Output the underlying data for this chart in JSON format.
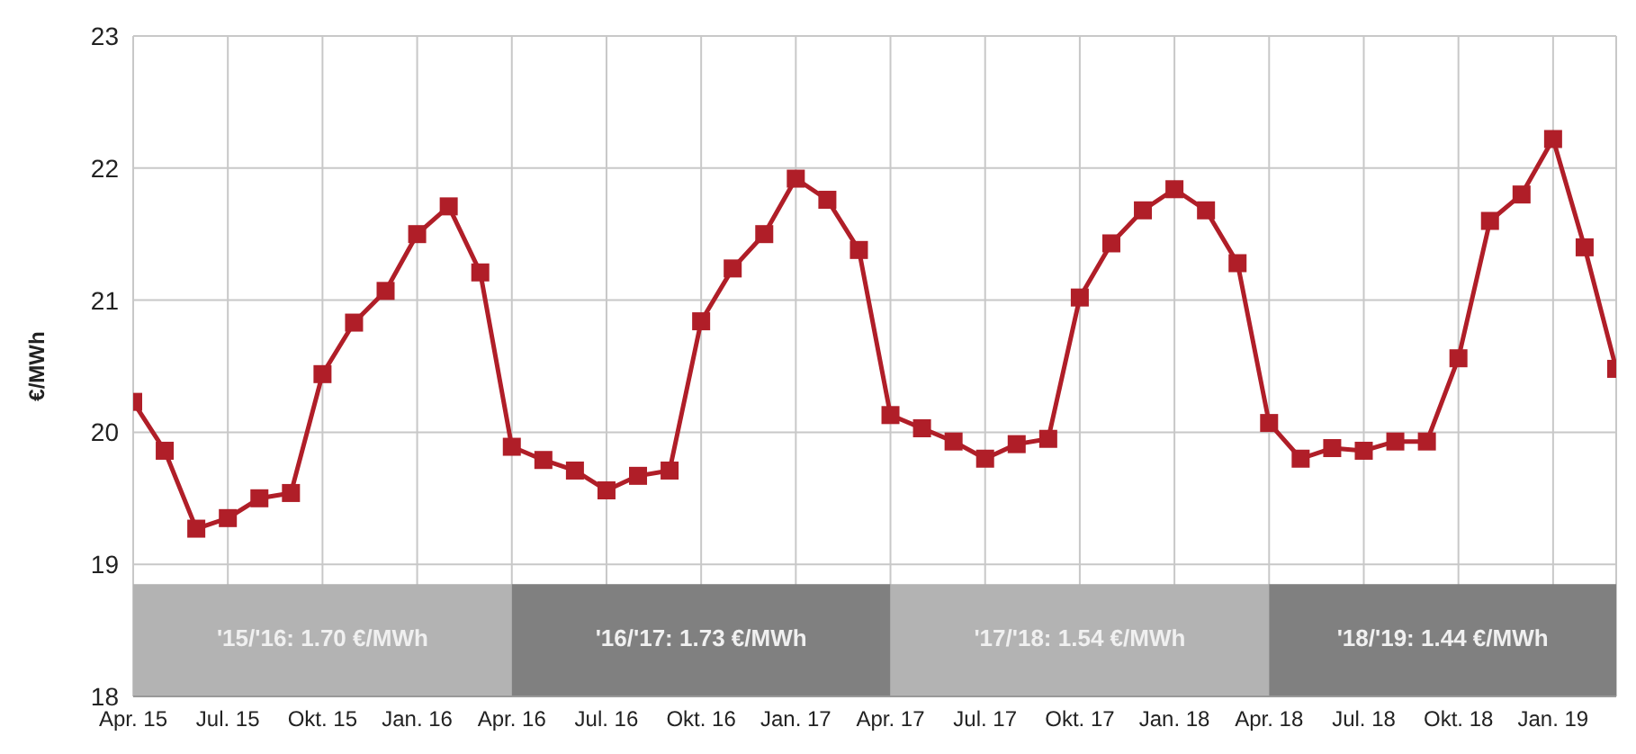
{
  "chart_data": {
    "type": "line",
    "ylabel": "€/MWh",
    "x": [
      "2015-04",
      "2015-05",
      "2015-06",
      "2015-07",
      "2015-08",
      "2015-09",
      "2015-10",
      "2015-11",
      "2015-12",
      "2016-01",
      "2016-02",
      "2016-03",
      "2016-04",
      "2016-05",
      "2016-06",
      "2016-07",
      "2016-08",
      "2016-09",
      "2016-10",
      "2016-11",
      "2016-12",
      "2017-01",
      "2017-02",
      "2017-03",
      "2017-04",
      "2017-05",
      "2017-06",
      "2017-07",
      "2017-08",
      "2017-09",
      "2017-10",
      "2017-11",
      "2017-12",
      "2018-01",
      "2018-02",
      "2018-03",
      "2018-04",
      "2018-05",
      "2018-06",
      "2018-07",
      "2018-08",
      "2018-09",
      "2018-10",
      "2018-11",
      "2018-12",
      "2019-01",
      "2019-02",
      "2019-03"
    ],
    "series": [
      {
        "color": "#b01e28",
        "values": [
          20.23,
          19.86,
          19.27,
          19.35,
          19.5,
          19.54,
          20.44,
          20.83,
          21.07,
          21.5,
          21.71,
          21.21,
          19.89,
          19.79,
          19.71,
          19.56,
          19.67,
          19.71,
          20.84,
          21.24,
          21.5,
          21.92,
          21.76,
          21.38,
          20.13,
          20.03,
          19.93,
          19.8,
          19.91,
          19.95,
          21.02,
          21.43,
          21.68,
          21.84,
          21.68,
          21.28,
          20.07,
          19.8,
          19.88,
          19.86,
          19.93,
          19.93,
          20.56,
          21.6,
          21.8,
          22.22,
          21.4,
          20.48
        ]
      }
    ],
    "xlim": [
      "2015-04",
      "2019-03"
    ],
    "xticks": [
      {
        "value": "2015-04",
        "label": "Apr. 15"
      },
      {
        "value": "2015-07",
        "label": "Jul. 15"
      },
      {
        "value": "2015-10",
        "label": "Okt. 15"
      },
      {
        "value": "2016-01",
        "label": "Jan. 16"
      },
      {
        "value": "2016-04",
        "label": "Apr. 16"
      },
      {
        "value": "2016-07",
        "label": "Jul. 16"
      },
      {
        "value": "2016-10",
        "label": "Okt. 16"
      },
      {
        "value": "2017-01",
        "label": "Jan. 17"
      },
      {
        "value": "2017-04",
        "label": "Apr. 17"
      },
      {
        "value": "2017-07",
        "label": "Jul. 17"
      },
      {
        "value": "2017-10",
        "label": "Okt. 17"
      },
      {
        "value": "2018-01",
        "label": "Jan. 18"
      },
      {
        "value": "2018-04",
        "label": "Apr. 18"
      },
      {
        "value": "2018-07",
        "label": "Jul. 18"
      },
      {
        "value": "2018-10",
        "label": "Okt. 18"
      },
      {
        "value": "2019-01",
        "label": "Jan. 19"
      }
    ],
    "ylim": [
      18,
      23
    ],
    "yticks": [
      18,
      19,
      20,
      21,
      22,
      23
    ],
    "bands": [
      {
        "axis": "x",
        "from": "2015-04",
        "to": "2016-04",
        "label": "'15/'16: 1.70 €/MWh",
        "color": "#b3b3b3"
      },
      {
        "axis": "x",
        "from": "2016-04",
        "to": "2017-04",
        "label": "'16/'17: 1.73 €/MWh",
        "color": "#808080"
      },
      {
        "axis": "x",
        "from": "2017-04",
        "to": "2018-04",
        "label": "'17/'18: 1.54 €/MWh",
        "color": "#b3b3b3"
      },
      {
        "axis": "x",
        "from": "2018-04",
        "to": "2019-03",
        "label": "'18/'19: 1.44 €/MWh",
        "color": "#808080"
      }
    ],
    "grid": true,
    "legend": false,
    "marker": "square",
    "line_style": "solid"
  }
}
